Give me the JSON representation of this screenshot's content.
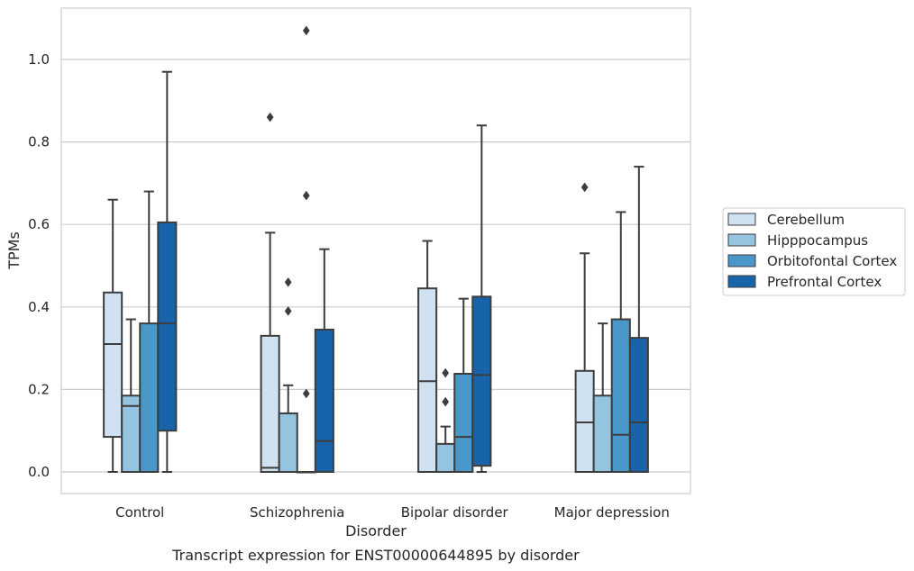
{
  "chart_data": {
    "type": "box",
    "xlabel": "Disorder",
    "ylabel": "TPMs",
    "caption": "Transcript expression for ENST00000644895 by disorder",
    "ylim": [
      -0.05,
      1.13
    ],
    "yticks": [
      "0.0",
      "0.2",
      "0.4",
      "0.6",
      "0.8",
      "1.0"
    ],
    "grid": true,
    "legend_position": "right",
    "categories": [
      "Control",
      "Schizophrenia",
      "Bipolar disorder",
      "Major depression"
    ],
    "series": [
      {
        "name": "Cerebellum",
        "color": "#d0e1f2",
        "boxes": [
          {
            "whisker_low": 0.0,
            "q1": 0.085,
            "median": 0.31,
            "q3": 0.435,
            "whisker_high": 0.66,
            "outliers": []
          },
          {
            "whisker_low": 0.0,
            "q1": 0.0,
            "median": 0.01,
            "q3": 0.33,
            "whisker_high": 0.58,
            "outliers": [
              0.86
            ]
          },
          {
            "whisker_low": 0.0,
            "q1": 0.0,
            "median": 0.22,
            "q3": 0.445,
            "whisker_high": 0.56,
            "outliers": []
          },
          {
            "whisker_low": 0.0,
            "q1": 0.0,
            "median": 0.12,
            "q3": 0.245,
            "whisker_high": 0.53,
            "outliers": [
              0.69
            ]
          }
        ]
      },
      {
        "name": "Hipppocampus",
        "color": "#94c4df",
        "boxes": [
          {
            "whisker_low": 0.0,
            "q1": 0.0,
            "median": 0.16,
            "q3": 0.185,
            "whisker_high": 0.37,
            "outliers": []
          },
          {
            "whisker_low": 0.0,
            "q1": 0.0,
            "median": 0.0,
            "q3": 0.142,
            "whisker_high": 0.21,
            "outliers": [
              0.39,
              0.46
            ]
          },
          {
            "whisker_low": 0.0,
            "q1": 0.0,
            "median": 0.0,
            "q3": 0.068,
            "whisker_high": 0.11,
            "outliers": [
              0.17,
              0.24
            ]
          },
          {
            "whisker_low": 0.0,
            "q1": 0.0,
            "median": 0.0,
            "q3": 0.185,
            "whisker_high": 0.36,
            "outliers": []
          }
        ]
      },
      {
        "name": "Orbitofontal Cortex",
        "color": "#4a98c9",
        "boxes": [
          {
            "whisker_low": 0.0,
            "q1": 0.0,
            "median": 0.0,
            "q3": 0.36,
            "whisker_high": 0.68,
            "outliers": []
          },
          {
            "whisker_low": 0.0,
            "q1": 0.0,
            "median": 0.0,
            "q3": 0.0,
            "whisker_high": 0.0,
            "outliers": [
              0.19,
              0.67,
              1.07
            ]
          },
          {
            "whisker_low": 0.0,
            "q1": 0.0,
            "median": 0.085,
            "q3": 0.238,
            "whisker_high": 0.42,
            "outliers": []
          },
          {
            "whisker_low": 0.0,
            "q1": 0.0,
            "median": 0.09,
            "q3": 0.37,
            "whisker_high": 0.63,
            "outliers": []
          }
        ]
      },
      {
        "name": "Prefrontal Cortex",
        "color": "#1764ab",
        "boxes": [
          {
            "whisker_low": 0.0,
            "q1": 0.1,
            "median": 0.36,
            "q3": 0.605,
            "whisker_high": 0.97,
            "outliers": []
          },
          {
            "whisker_low": 0.0,
            "q1": 0.0,
            "median": 0.075,
            "q3": 0.345,
            "whisker_high": 0.54,
            "outliers": []
          },
          {
            "whisker_low": 0.0,
            "q1": 0.015,
            "median": 0.235,
            "q3": 0.425,
            "whisker_high": 0.84,
            "outliers": []
          },
          {
            "whisker_low": 0.0,
            "q1": 0.0,
            "median": 0.12,
            "q3": 0.325,
            "whisker_high": 0.74,
            "outliers": []
          }
        ]
      }
    ]
  }
}
